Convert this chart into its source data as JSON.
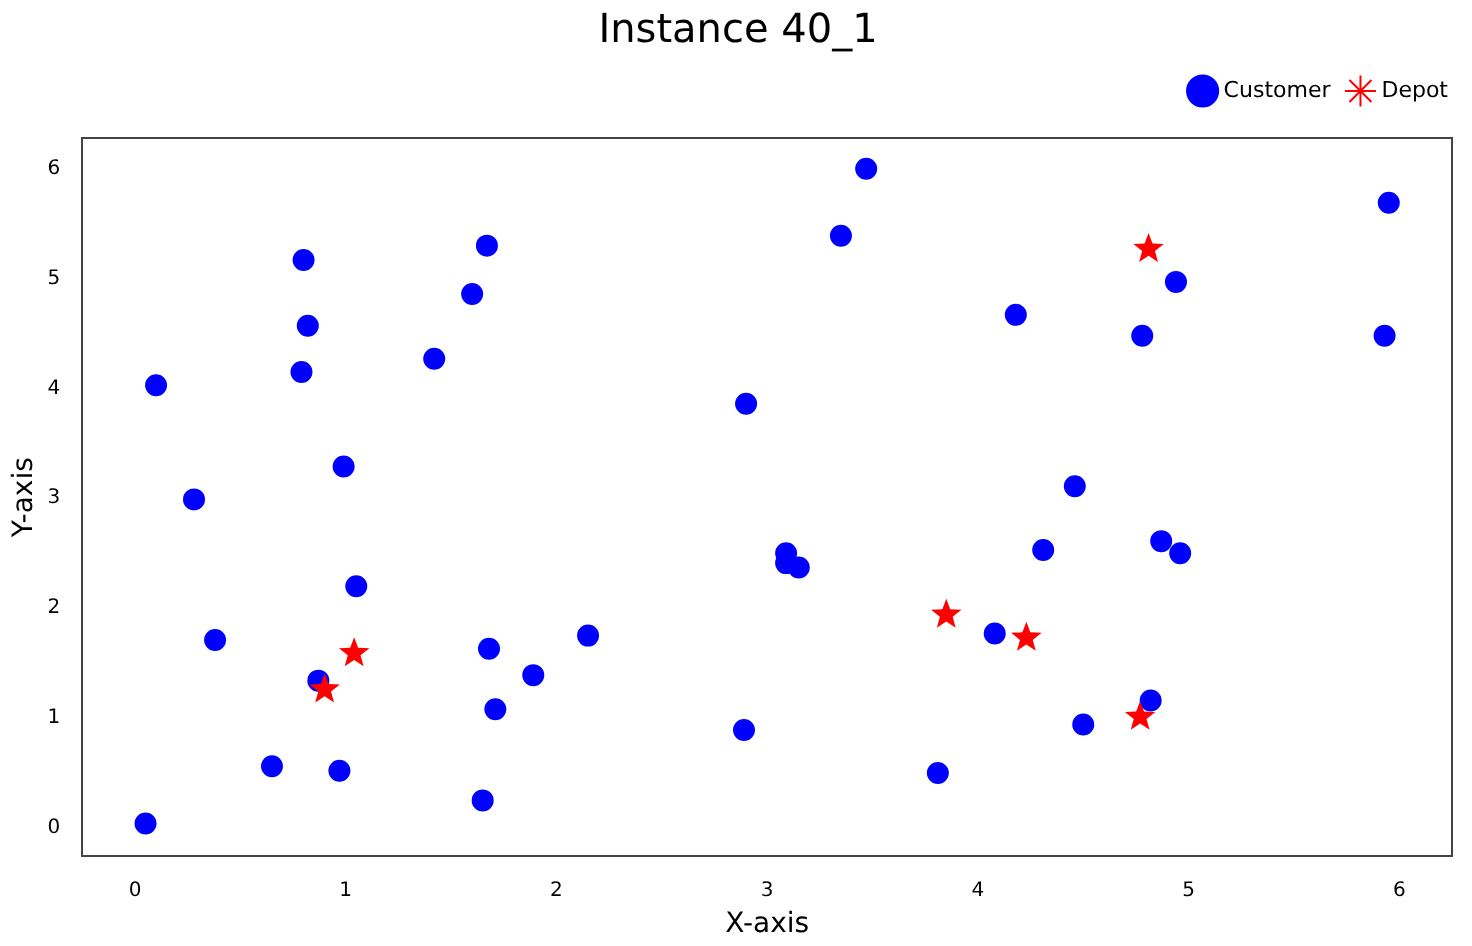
{
  "chart_data": {
    "type": "scatter",
    "title": "Instance 40_1",
    "xlabel": "X-axis",
    "ylabel": "Y-axis",
    "xlim": [
      -0.25,
      6.25
    ],
    "xticks": [
      0,
      1,
      2,
      3,
      4,
      5,
      6
    ],
    "ylim": [
      -0.26,
      6.28
    ],
    "yticks": [
      0,
      1,
      2,
      3,
      4,
      5,
      6
    ],
    "grid": false,
    "legend": "top right",
    "series": [
      {
        "name": "Customer",
        "color": "#0000ff",
        "marker": "circle",
        "x": [
          0.05,
          0.1,
          0.28,
          0.38,
          0.65,
          0.8,
          0.82,
          0.79,
          0.87,
          0.97,
          0.99,
          1.05,
          1.42,
          1.6,
          1.67,
          1.68,
          1.71,
          1.65,
          1.89,
          2.15,
          2.9,
          2.89,
          3.09,
          3.09,
          3.15,
          3.35,
          3.47,
          3.81,
          4.08,
          4.18,
          4.31,
          4.46,
          4.5,
          4.78,
          4.82,
          4.87,
          4.94,
          4.96,
          5.93,
          5.95
        ],
        "values": [
          0.04,
          4.03,
          2.99,
          1.71,
          0.56,
          5.17,
          4.57,
          4.15,
          1.34,
          0.52,
          3.29,
          2.2,
          4.27,
          4.86,
          5.3,
          1.63,
          1.08,
          0.25,
          1.39,
          1.75,
          3.86,
          0.89,
          2.5,
          2.41,
          2.37,
          5.39,
          6.0,
          0.5,
          1.77,
          4.67,
          2.53,
          3.11,
          0.94,
          4.48,
          1.16,
          2.61,
          4.97,
          2.5,
          4.48,
          5.69
        ]
      },
      {
        "name": "Depot",
        "color": "#ff0000",
        "marker": "star",
        "x": [
          0.9,
          1.04,
          3.85,
          4.23,
          4.77,
          4.81
        ],
        "values": [
          1.26,
          1.59,
          1.94,
          1.73,
          1.01,
          5.27
        ]
      }
    ]
  }
}
